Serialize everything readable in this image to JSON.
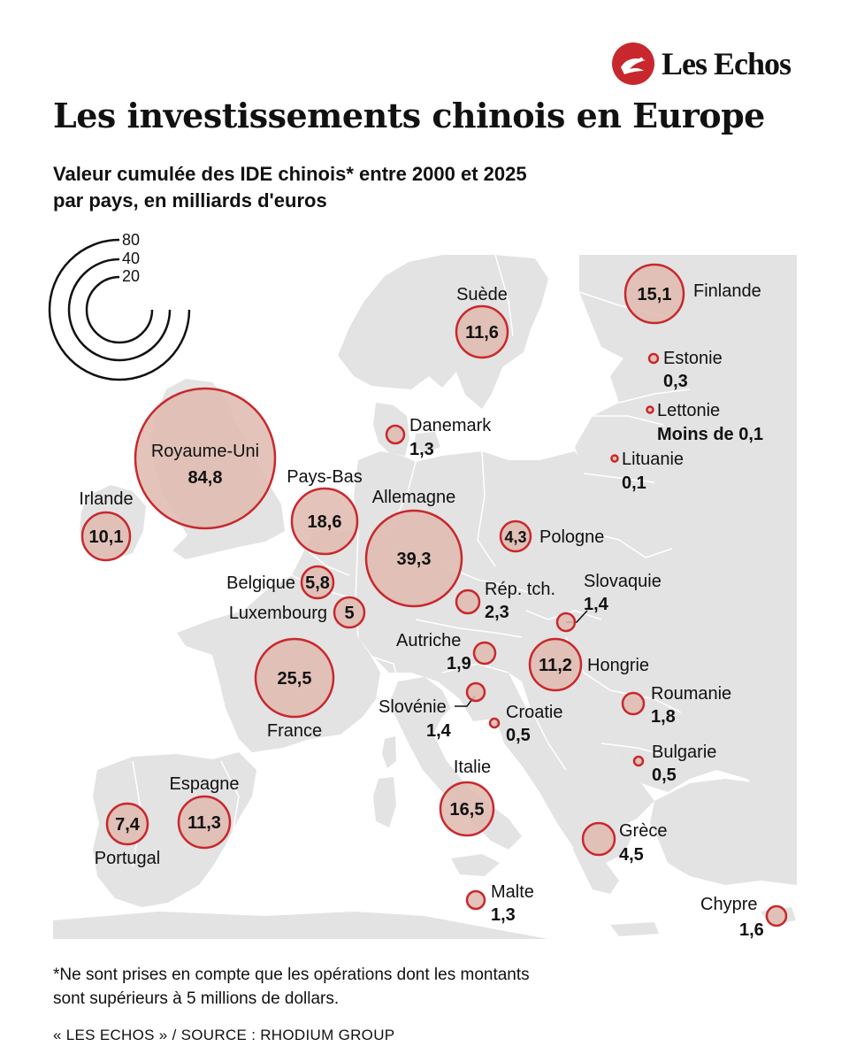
{
  "brand": {
    "name": "Les Echos"
  },
  "title": "Les investissements chinois en Europe",
  "subtitle": {
    "line1": "Valeur cumulée des IDE chinois* entre 2000 et 2025",
    "line2": "par pays, en milliards d'euros"
  },
  "legend": {
    "values": [
      "80",
      "40",
      "20"
    ]
  },
  "colors": {
    "accent": "#c8282d",
    "bubble_fill": "#dfbbb0",
    "land": "#e3e3e3",
    "text": "#111111"
  },
  "countries": [
    {
      "id": "royaume-uni",
      "name": "Royaume-Uni",
      "value": "84,8"
    },
    {
      "id": "allemagne",
      "name": "Allemagne",
      "value": "39,3"
    },
    {
      "id": "france",
      "name": "France",
      "value": "25,5"
    },
    {
      "id": "pays-bas",
      "name": "Pays-Bas",
      "value": "18,6"
    },
    {
      "id": "italie",
      "name": "Italie",
      "value": "16,5"
    },
    {
      "id": "finlande",
      "name": "Finlande",
      "value": "15,1"
    },
    {
      "id": "suede",
      "name": "Suède",
      "value": "11,6"
    },
    {
      "id": "espagne",
      "name": "Espagne",
      "value": "11,3"
    },
    {
      "id": "hongrie",
      "name": "Hongrie",
      "value": "11,2"
    },
    {
      "id": "irlande",
      "name": "Irlande",
      "value": "10,1"
    },
    {
      "id": "portugal",
      "name": "Portugal",
      "value": "7,4"
    },
    {
      "id": "belgique",
      "name": "Belgique",
      "value": "5,8"
    },
    {
      "id": "luxembourg",
      "name": "Luxembourg",
      "value": "5"
    },
    {
      "id": "grece",
      "name": "Grèce",
      "value": "4,5"
    },
    {
      "id": "pologne",
      "name": "Pologne",
      "value": "4,3"
    },
    {
      "id": "rep-tch",
      "name": "Rép. tch.",
      "value": "2,3"
    },
    {
      "id": "autriche",
      "name": "Autriche",
      "value": "1,9"
    },
    {
      "id": "roumanie",
      "name": "Roumanie",
      "value": "1,8"
    },
    {
      "id": "chypre",
      "name": "Chypre",
      "value": "1,6"
    },
    {
      "id": "slovaquie",
      "name": "Slovaquie",
      "value": "1,4"
    },
    {
      "id": "slovenie",
      "name": "Slovénie",
      "value": "1,4"
    },
    {
      "id": "danemark",
      "name": "Danemark",
      "value": "1,3"
    },
    {
      "id": "malte",
      "name": "Malte",
      "value": "1,3"
    },
    {
      "id": "croatie",
      "name": "Croatie",
      "value": "0,5"
    },
    {
      "id": "bulgarie",
      "name": "Bulgarie",
      "value": "0,5"
    },
    {
      "id": "estonie",
      "name": "Estonie",
      "value": "0,3"
    },
    {
      "id": "lituanie",
      "name": "Lituanie",
      "value": "0,1"
    },
    {
      "id": "lettonie",
      "name": "Lettonie",
      "value": "Moins de 0,1"
    }
  ],
  "note": {
    "line1": "*Ne sont prises en compte que les opérations dont les montants",
    "line2": "sont supérieurs à 5 millions de dollars."
  },
  "credit": "« LES ECHOS » / SOURCE : RHODIUM GROUP"
}
